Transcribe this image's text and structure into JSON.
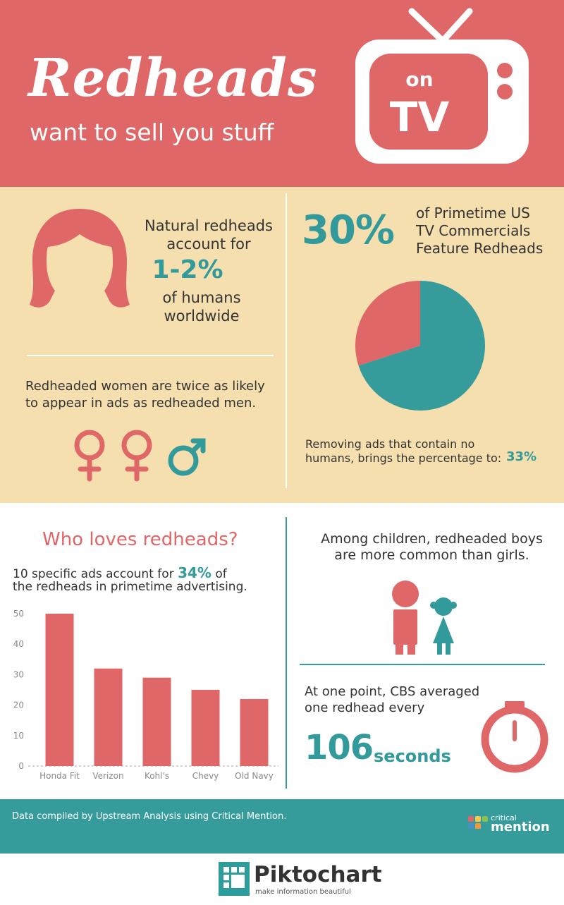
{
  "header": {
    "title": "Redheads",
    "subtitle": "want to sell you stuff",
    "tv_on": "on",
    "tv_tv": "TV"
  },
  "natural": {
    "line1": "Natural redheads",
    "line2": "account for",
    "percent": "1-2%",
    "line3": "of humans",
    "line4": "worldwide"
  },
  "women": {
    "line1": "Redheaded women are twice as likely",
    "line2": "to appear in ads as redheaded men."
  },
  "primetime": {
    "percent": "30%",
    "line1": "of Primetime US",
    "line2": "TV Commercials",
    "line3": "Feature Redheads",
    "removing_line1": "Removing ads that contain no",
    "removing_line2": "humans, brings the percentage to:",
    "removing_percent": "33%"
  },
  "who_loves": {
    "heading": "Who loves redheads?",
    "line1_pre": "10 specific ads account for",
    "line1_percent": "34%",
    "line1_post": "of",
    "line2": "the redheads in primetime advertising."
  },
  "children": {
    "line1": "Among children, redheaded boys",
    "line2": "are more common than girls."
  },
  "cbs": {
    "line1": "At one point, CBS averaged",
    "line2": "one redhead every",
    "number": "106",
    "unit": "seconds"
  },
  "footer": {
    "credit": "Data compiled by Upstream Analysis using Critical Mention.",
    "logo_small": "critical",
    "logo_big": "mention"
  },
  "brand": {
    "name": "Piktochart",
    "tagline": "make information beautiful"
  },
  "colors": {
    "coral": "#E06767",
    "teal": "#369C9B",
    "tan": "#F6DFAF"
  },
  "chart_data": [
    {
      "type": "pie",
      "slices": [
        {
          "label": "Feature Redheads",
          "value": 30,
          "color": "#E06767"
        },
        {
          "label": "",
          "value": 70,
          "color": "#369C9B"
        }
      ]
    },
    {
      "type": "bar",
      "categories": [
        "Honda Fit",
        "Verizon",
        "Kohl's",
        "Chevy",
        "Old Navy"
      ],
      "values": [
        50,
        32,
        29,
        25,
        22
      ],
      "ylim": [
        0,
        50
      ],
      "yticks": [
        0,
        10,
        20,
        30,
        40,
        50
      ],
      "bar_color": "#E06767"
    }
  ]
}
